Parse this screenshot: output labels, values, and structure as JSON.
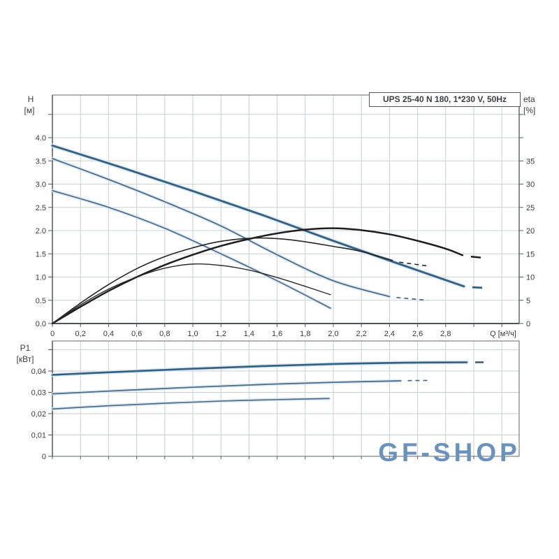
{
  "page": {
    "background": "#ffffff",
    "watermark": {
      "text": "GF-SHOP",
      "color": "#6b92bd"
    }
  },
  "title_box": {
    "label": "UPS 25-40 N 180, 1*230 V, 50Hz"
  },
  "colors": {
    "grid": "#cbd0d4",
    "frame": "#7a8084",
    "axis_strong": "#4f5356",
    "tick_text": "#38393b",
    "curve_blue_thick": "#34607f",
    "curve_blue_thin": "#4a687f",
    "curve_black": "#1e1e1e",
    "halo_blue": "#d4e4f0"
  },
  "chart_data": [
    {
      "id": "hq-eta-chart",
      "type": "line",
      "title": "UPS 25-40 N 180, 1*230 V, 50Hz",
      "x_axis": {
        "label": "Q [м³/ч]",
        "range": [
          0,
          3.32
        ],
        "grid": true,
        "ticks": [
          {
            "v": 0,
            "t": "0"
          },
          {
            "v": 0.2,
            "t": "0,2"
          },
          {
            "v": 0.4,
            "t": "0,4"
          },
          {
            "v": 0.6,
            "t": "0,6"
          },
          {
            "v": 0.8,
            "t": "0,8"
          },
          {
            "v": 1.0,
            "t": "1,0"
          },
          {
            "v": 1.2,
            "t": "1,2"
          },
          {
            "v": 1.4,
            "t": "1,4"
          },
          {
            "v": 1.6,
            "t": "1,6"
          },
          {
            "v": 1.8,
            "t": "1,8"
          },
          {
            "v": 2.0,
            "t": "2,0"
          },
          {
            "v": 2.2,
            "t": "2,2"
          },
          {
            "v": 2.4,
            "t": "2,4"
          },
          {
            "v": 2.6,
            "t": "2,6"
          },
          {
            "v": 2.8,
            "t": "2,8"
          },
          {
            "v": 3.0,
            "t": ""
          },
          {
            "v": 3.2,
            "t": ""
          }
        ]
      },
      "left_axis": {
        "name": "H",
        "unit": "[м]",
        "range": [
          0,
          4.93
        ],
        "ticks": [
          {
            "v": 4.5,
            "t": ""
          },
          {
            "v": 4.0,
            "t": "4.0"
          },
          {
            "v": 3.5,
            "t": "3.5"
          },
          {
            "v": 3.0,
            "t": "3.0"
          },
          {
            "v": 2.5,
            "t": "2.5"
          },
          {
            "v": 2.0,
            "t": "2.0"
          },
          {
            "v": 1.5,
            "t": "1.5"
          },
          {
            "v": 1.0,
            "t": "1.0"
          },
          {
            "v": 0.5,
            "t": "0.5"
          },
          {
            "v": 0,
            "t": "0.0"
          }
        ]
      },
      "right_axis": {
        "name": "eta",
        "unit": "[%]",
        "range": [
          0,
          49.3
        ],
        "ticks": [
          {
            "v": 45,
            "t": ""
          },
          {
            "v": 40,
            "t": ""
          },
          {
            "v": 35,
            "t": "35"
          },
          {
            "v": 30,
            "t": "30"
          },
          {
            "v": 25,
            "t": "25"
          },
          {
            "v": 20,
            "t": "20"
          },
          {
            "v": 15,
            "t": "15"
          },
          {
            "v": 10,
            "t": "10"
          },
          {
            "v": 5,
            "t": "5"
          },
          {
            "v": 0,
            "t": "0"
          }
        ]
      },
      "series": [
        {
          "name": "H curve speed III",
          "role": "h-curve-speed-3",
          "axis": "H",
          "color": "#34607f",
          "width": 2.8,
          "halo": true,
          "points": [
            [
              0,
              3.83
            ],
            [
              0.5,
              3.35
            ],
            [
              1.0,
              2.85
            ],
            [
              1.5,
              2.33
            ],
            [
              2.0,
              1.78
            ],
            [
              2.5,
              1.25
            ],
            [
              2.93,
              0.8
            ]
          ],
          "tail": {
            "points": [
              [
                2.99,
                0.78
              ],
              [
                3.06,
                0.77
              ]
            ],
            "dasharray": ""
          }
        },
        {
          "name": "H curve speed II",
          "role": "h-curve-speed-2",
          "axis": "H",
          "color": "#4a687f",
          "width": 1.7,
          "halo": true,
          "points": [
            [
              0,
              3.55
            ],
            [
              0.4,
              3.1
            ],
            [
              0.8,
              2.62
            ],
            [
              1.2,
              2.1
            ],
            [
              1.6,
              1.48
            ],
            [
              2.0,
              0.92
            ],
            [
              2.4,
              0.58
            ]
          ],
          "tail": {
            "points": [
              [
                2.45,
                0.56
              ],
              [
                2.67,
                0.5
              ]
            ],
            "dasharray": "6 5"
          }
        },
        {
          "name": "H curve speed I",
          "role": "h-curve-speed-1",
          "axis": "H",
          "color": "#4a687f",
          "width": 1.6,
          "halo": true,
          "points": [
            [
              0,
              2.86
            ],
            [
              0.4,
              2.5
            ],
            [
              0.8,
              2.05
            ],
            [
              1.2,
              1.5
            ],
            [
              1.6,
              0.92
            ],
            [
              1.98,
              0.33
            ]
          ]
        },
        {
          "name": "eta curve speed III",
          "role": "eta-curve-speed-3",
          "axis": "eta",
          "color": "#1e1e1e",
          "width": 2.5,
          "points": [
            [
              0,
              0
            ],
            [
              0.2,
              3.6
            ],
            [
              0.4,
              7.0
            ],
            [
              0.6,
              10.0
            ],
            [
              0.8,
              12.6
            ],
            [
              1.0,
              14.8
            ],
            [
              1.2,
              16.7
            ],
            [
              1.4,
              18.2
            ],
            [
              1.6,
              19.4
            ],
            [
              1.8,
              20.2
            ],
            [
              2.0,
              20.5
            ],
            [
              2.2,
              20.1
            ],
            [
              2.4,
              19.2
            ],
            [
              2.6,
              17.8
            ],
            [
              2.8,
              16.1
            ],
            [
              2.92,
              14.7
            ]
          ],
          "tail": {
            "points": [
              [
                2.98,
                14.4
              ],
              [
                3.05,
                14.2
              ]
            ],
            "dasharray": ""
          }
        },
        {
          "name": "eta curve speed II",
          "role": "eta-curve-speed-2",
          "axis": "eta",
          "color": "#242424",
          "width": 1.6,
          "points": [
            [
              0,
              0
            ],
            [
              0.2,
              4.4
            ],
            [
              0.4,
              8.4
            ],
            [
              0.6,
              11.8
            ],
            [
              0.8,
              14.4
            ],
            [
              1.0,
              16.3
            ],
            [
              1.2,
              17.7
            ],
            [
              1.45,
              18.4
            ],
            [
              1.7,
              18.0
            ],
            [
              2.0,
              16.6
            ],
            [
              2.2,
              15.5
            ],
            [
              2.42,
              13.6
            ]
          ],
          "tail": {
            "points": [
              [
                2.47,
                13.2
              ],
              [
                2.67,
                12.4
              ]
            ],
            "dasharray": "6 5"
          }
        },
        {
          "name": "eta curve speed I",
          "role": "eta-curve-speed-1",
          "axis": "eta",
          "color": "#2a2a2a",
          "width": 1.4,
          "points": [
            [
              0,
              0
            ],
            [
              0.2,
              4.0
            ],
            [
              0.4,
              7.4
            ],
            [
              0.6,
              10.0
            ],
            [
              0.8,
              11.9
            ],
            [
              1.0,
              12.8
            ],
            [
              1.2,
              12.5
            ],
            [
              1.4,
              11.5
            ],
            [
              1.6,
              9.9
            ],
            [
              1.8,
              8.0
            ],
            [
              1.98,
              6.2
            ]
          ]
        }
      ]
    },
    {
      "id": "power-chart",
      "type": "line",
      "x_axis": {
        "shared_with": "hq-eta-chart"
      },
      "left_axis": {
        "name": "P1",
        "unit": "[кВт]",
        "range": [
          0,
          0.054
        ],
        "ticks": [
          {
            "v": 0.05,
            "t": ""
          },
          {
            "v": 0.04,
            "t": "0,04"
          },
          {
            "v": 0.03,
            "t": "0,03"
          },
          {
            "v": 0.02,
            "t": "0,02"
          },
          {
            "v": 0.01,
            "t": "0,01"
          },
          {
            "v": 0,
            "t": "0"
          }
        ]
      },
      "series": [
        {
          "name": "P1 curve speed III",
          "role": "p1-curve-speed-3",
          "axis": "P1",
          "color": "#34607f",
          "width": 2.6,
          "halo": true,
          "points": [
            [
              0,
              0.0382
            ],
            [
              0.5,
              0.0397
            ],
            [
              1.0,
              0.0411
            ],
            [
              1.5,
              0.0423
            ],
            [
              2.0,
              0.0433
            ],
            [
              2.5,
              0.0439
            ],
            [
              2.95,
              0.0441
            ]
          ],
          "tail": {
            "points": [
              [
                3.01,
                0.0441
              ],
              [
                3.07,
                0.0441
              ]
            ],
            "dasharray": ""
          }
        },
        {
          "name": "P1 curve speed II",
          "role": "p1-curve-speed-2",
          "axis": "P1",
          "color": "#4a687f",
          "width": 1.7,
          "halo": true,
          "points": [
            [
              0,
              0.0293
            ],
            [
              0.5,
              0.0309
            ],
            [
              1.0,
              0.0324
            ],
            [
              1.5,
              0.0337
            ],
            [
              2.0,
              0.0347
            ],
            [
              2.48,
              0.0354
            ]
          ],
          "tail": {
            "points": [
              [
                2.53,
                0.0355
              ],
              [
                2.67,
                0.0356
              ]
            ],
            "dasharray": "6 5"
          }
        },
        {
          "name": "P1 curve speed I",
          "role": "p1-curve-speed-1",
          "axis": "P1",
          "color": "#4a687f",
          "width": 1.6,
          "halo": true,
          "points": [
            [
              0,
              0.0222
            ],
            [
              0.4,
              0.0237
            ],
            [
              0.8,
              0.0249
            ],
            [
              1.2,
              0.0259
            ],
            [
              1.6,
              0.0266
            ],
            [
              1.97,
              0.0271
            ]
          ]
        }
      ]
    }
  ]
}
